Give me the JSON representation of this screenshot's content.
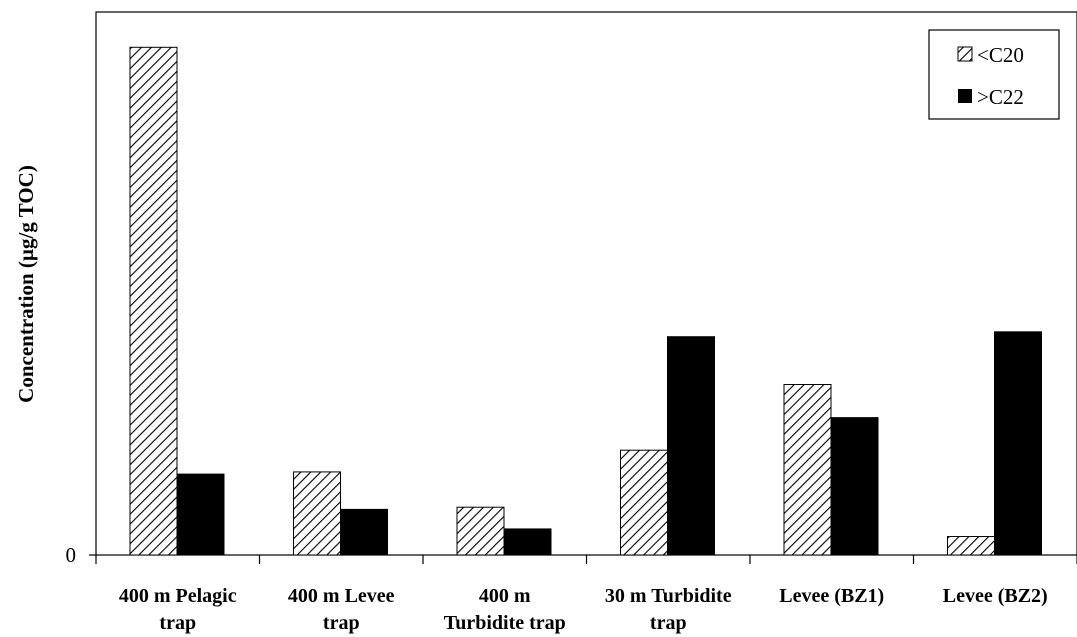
{
  "chart_data": {
    "type": "bar",
    "title": "",
    "xlabel": "",
    "ylabel": "Concentration (µg/g TOC)",
    "y_ticks": [
      "0"
    ],
    "ylim": [
      0,
      100
    ],
    "grid": false,
    "legend_position": "top-right",
    "categories": [
      [
        "400 m Pelagic",
        "trap"
      ],
      [
        "400 m Levee",
        "trap"
      ],
      [
        "400 m",
        "Turbidite trap"
      ],
      [
        "30 m Turbidite",
        "trap"
      ],
      [
        "Levee (BZ1)"
      ],
      [
        "Levee (BZ2)"
      ]
    ],
    "series": [
      {
        "name": "<C20",
        "pattern": "diagonal-hatch",
        "color": "#000000",
        "values": [
          93.5,
          15.3,
          8.8,
          19.3,
          31.4,
          3.4
        ]
      },
      {
        "name": ">C22",
        "pattern": "solid",
        "color": "#000000",
        "values": [
          14.9,
          8.4,
          4.8,
          40.2,
          25.3,
          41.1
        ]
      }
    ]
  }
}
